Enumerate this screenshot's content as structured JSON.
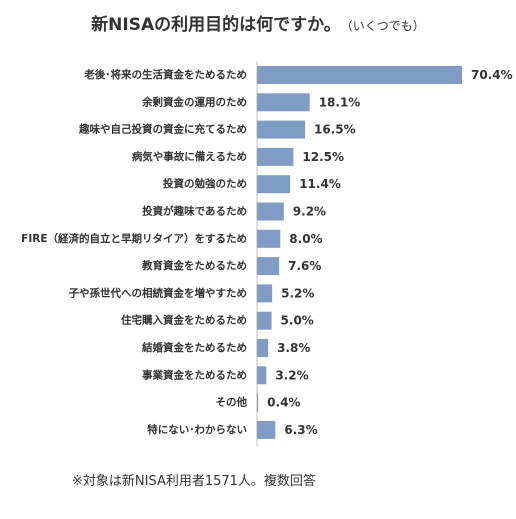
{
  "chart_data": {
    "type": "bar",
    "orientation": "horizontal",
    "title": "新NISAの利用目的は何ですか。",
    "subtitle": "（いくつでも）",
    "categories": [
      "老後･将来の生活資金をためるため",
      "余剰資金の運用のため",
      "趣味や自己投資の資金に充てるため",
      "病気や事故に備えるため",
      "投資の勉強のため",
      "投資が趣味であるため",
      "FIRE（経済的自立と早期リタイア）をするため",
      "教育資金をためるため",
      "子や孫世代への相続資金を増やすため",
      "住宅購入資金をためるため",
      "結婚資金をためるため",
      "事業資金をためるため",
      "その他",
      "特にない･わからない"
    ],
    "values": [
      70.4,
      18.1,
      16.5,
      12.5,
      11.4,
      9.2,
      8.0,
      7.6,
      5.2,
      5.0,
      3.8,
      3.2,
      0.4,
      6.3
    ],
    "value_labels": [
      "70.4%",
      "18.1%",
      "16.5%",
      "12.5%",
      "11.4%",
      "9.2%",
      "8.0%",
      "7.6%",
      "5.2%",
      "5.0%",
      "3.8%",
      "3.2%",
      "0.4%",
      "6.3%"
    ],
    "unit": "%",
    "bar_color": "#7f9cc4",
    "axis_line_color": "#bfbfbf",
    "grid": false,
    "legend": false,
    "xlim": [
      0,
      70.4
    ]
  },
  "footnote": "※対象は新NISA利用者1571人。複数回答"
}
